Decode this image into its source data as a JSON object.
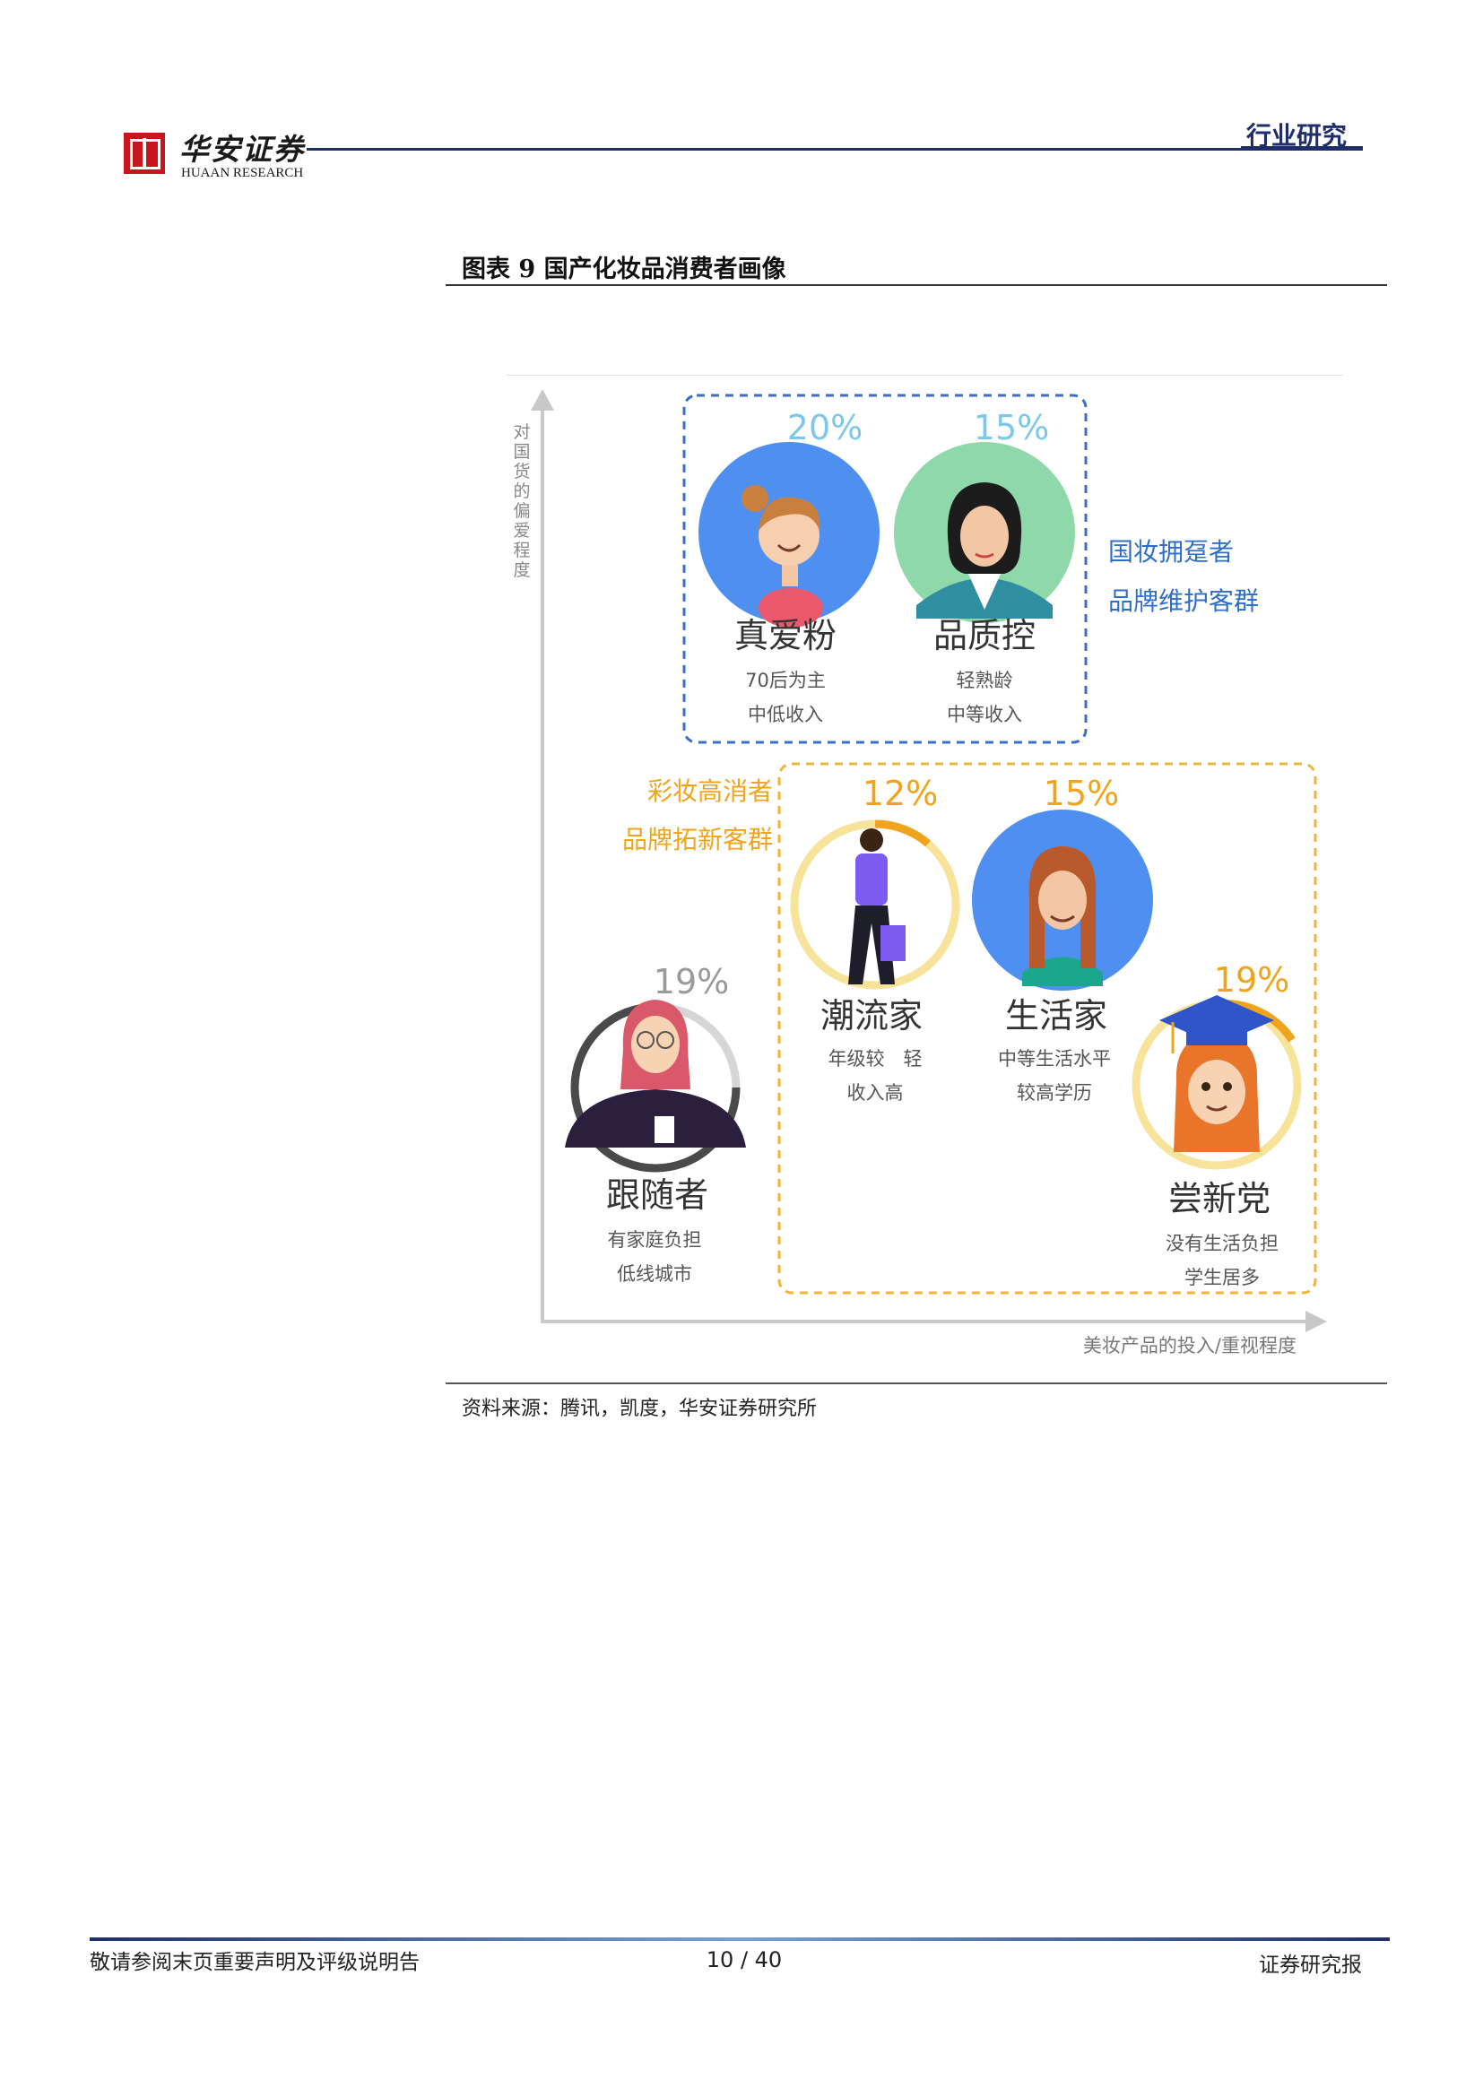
{
  "header": {
    "brand_cn": "华安证券",
    "brand_en": "HUAAN RESEARCH",
    "section": "行业研究"
  },
  "figure": {
    "title": "图表 9  国产化妆品消费者画像",
    "source": "资料来源：腾讯，凯度，华安证券研究所"
  },
  "chart_data": {
    "type": "diagram",
    "y_axis_label": "对国货的偏爱程度",
    "x_axis_label": "美妆产品的投入/重视程度",
    "groups": [
      {
        "label_line1": "国妆拥趸者",
        "label_line2": "品牌维护客群",
        "color": "#2f6ec7",
        "border": "dashed"
      },
      {
        "label_line1": "彩妆高消者",
        "label_line2": "品牌拓新客群",
        "color": "#f0a41b",
        "border": "dashed"
      }
    ],
    "segments": [
      {
        "name": "真爱粉",
        "share": "20%",
        "share_value": 20,
        "desc1": "70后为主",
        "desc2": "中低收入",
        "group": 1,
        "color": "#7cc8ea"
      },
      {
        "name": "品质控",
        "share": "15%",
        "share_value": 15,
        "desc1": "轻熟龄",
        "desc2": "中等收入",
        "group": 1,
        "color": "#7cc8ea"
      },
      {
        "name": "潮流家",
        "share": "12%",
        "share_value": 12,
        "desc1": "年级较　轻",
        "desc2": "收入高",
        "group": 2,
        "color": "#f0a41b"
      },
      {
        "name": "生活家",
        "share": "15%",
        "share_value": 15,
        "desc1": "中等生活水平",
        "desc2": "较高学历",
        "group": 2,
        "color": "#f0a41b"
      },
      {
        "name": "尝新党",
        "share": "19%",
        "share_value": 19,
        "desc1": "没有生活负担",
        "desc2": "学生居多",
        "group": 2,
        "color": "#f0a41b"
      },
      {
        "name": "跟随者",
        "share": "19%",
        "share_value": 19,
        "desc1": "有家庭负担",
        "desc2": "低线城市",
        "group": 0,
        "color": "#9a9a9a"
      }
    ]
  },
  "footer": {
    "disclaimer": "敬请参阅末页重要声明及评级说明告",
    "page": "10 / 40",
    "doc_type": "证券研究报"
  }
}
